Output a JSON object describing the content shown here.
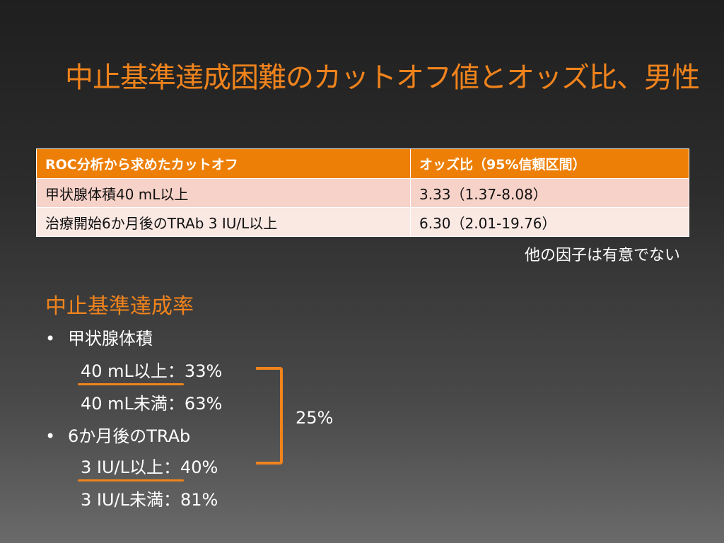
{
  "title": "中止基準達成困難のカットオフ値とオッズ比、男性",
  "table": {
    "headers": [
      "ROC分析から求めたカットオフ",
      "オッズ比（95%信頼区間）"
    ],
    "rows": [
      [
        "甲状腺体積40 mL以上",
        "3.33（1.37-8.08）"
      ],
      [
        "治療開始6か月後のTRAb 3 IU/L以上",
        "6.30（2.01-19.76）"
      ]
    ]
  },
  "note": "他の因子は有意でない",
  "section": {
    "heading": "中止基準達成率",
    "bullet_symbol": "•",
    "groups": [
      {
        "label": "甲状腺体積",
        "items": [
          {
            "condition": "40 mL以上",
            "value": "：33%"
          },
          {
            "condition": "40 mL未満",
            "value": "：63%"
          }
        ]
      },
      {
        "label": "6か月後のTRAb",
        "items": [
          {
            "condition": "3 IU/L以上",
            "value": "：40%"
          },
          {
            "condition": "3 IU/L未満",
            "value": "：81%"
          }
        ]
      }
    ],
    "bracket_label": "25%"
  },
  "colors": {
    "accent": "#f0831c",
    "table_header": "#ee7f06",
    "row_1": "#f6d2c8",
    "row_2": "#fae8e3"
  }
}
